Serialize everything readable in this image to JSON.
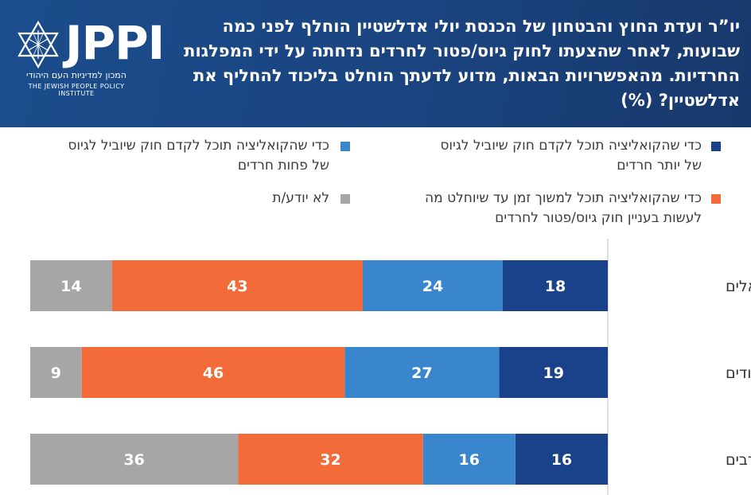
{
  "header": {
    "title": "יו”ר ועדת החוץ והבטחון של הכנסת יולי אדלשטיין הוחלף לפני כמה שבועות, לאחר שהצעתו לחוק גיוס/פטור לחרדים נדחתה על ידי המפלגות החרדיות. מהאפשרויות הבאות, מדוע לדעתך הוחלט בליכוד להחליף את אדלשטיין? (%)",
    "logo_text": "JPPI",
    "logo_subtitle_he": "המכון למדיניות העם היהודי",
    "logo_subtitle_en": "THE JEWISH PEOPLE POLICY INSTITUTE"
  },
  "colors": {
    "header_bg": "#1b4d8c",
    "dark_blue": "#1a428a",
    "mid_blue": "#3a86cc",
    "orange": "#f26b38",
    "gray": "#a6a6a6"
  },
  "chart_data": {
    "type": "bar",
    "orientation": "horizontal-stacked",
    "categories": [
      "כלל הישראלים",
      "יהודים",
      "ערבים"
    ],
    "series": [
      {
        "name": "כדי שהקואליציה תוכל לקדם חוק שיוביל לגיוס של יותר חרדים",
        "color": "#1a428a",
        "values": [
          18,
          19,
          16
        ]
      },
      {
        "name": "כדי שהקואליציה תוכל לקדם חוק שיוביל לגיוס של פחות חרדים",
        "color": "#3a86cc",
        "values": [
          24,
          27,
          16
        ]
      },
      {
        "name": "כדי שהקואליציה תוכל למשוך זמן עד שיוחלט מה לעשות בעניין חוק גיוס/פטור לחרדים",
        "color": "#f26b38",
        "values": [
          43,
          46,
          32
        ]
      },
      {
        "name": "לא יודע/ת",
        "color": "#a6a6a6",
        "values": [
          14,
          9,
          36
        ]
      }
    ],
    "data_labels": true,
    "direction": "right-to-left"
  }
}
